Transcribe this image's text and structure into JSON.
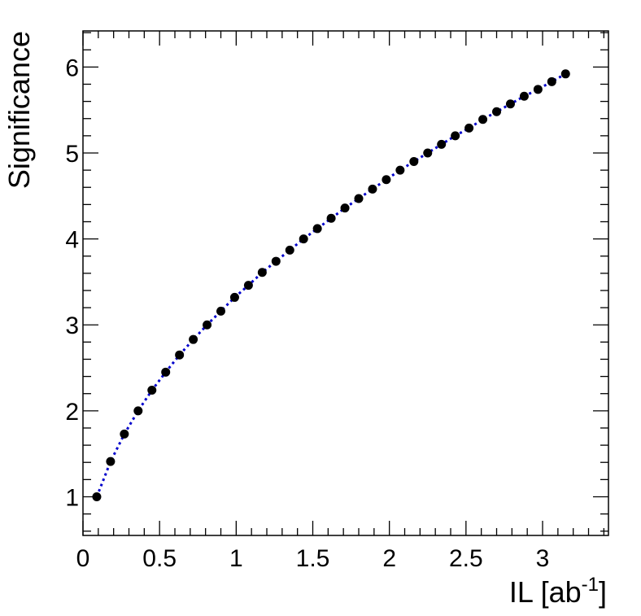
{
  "chart_data": {
    "type": "scatter",
    "xlabel": "IL [ab",
    "xlabel_superscript": "-1",
    "xlabel_close": "]",
    "ylabel": "Significance",
    "xlim": [
      0,
      3.43
    ],
    "ylim": [
      0.55,
      6.42
    ],
    "xticks": [
      0,
      0.5,
      1,
      1.5,
      2,
      2.5,
      3
    ],
    "xtick_labels": [
      "0",
      "0.5",
      "1",
      "1.5",
      "2",
      "2.5",
      "3"
    ],
    "yticks": [
      1,
      2,
      3,
      4,
      5,
      6
    ],
    "ytick_labels": [
      "1",
      "2",
      "3",
      "4",
      "5",
      "6"
    ],
    "grid": false,
    "marker_color": "#000000",
    "line_color": "#0000cc",
    "line_style": "dotted",
    "points": {
      "x": [
        0.09,
        0.18,
        0.27,
        0.36,
        0.45,
        0.54,
        0.63,
        0.72,
        0.81,
        0.9,
        0.99,
        1.08,
        1.17,
        1.26,
        1.35,
        1.44,
        1.53,
        1.62,
        1.71,
        1.8,
        1.89,
        1.98,
        2.07,
        2.16,
        2.25,
        2.34,
        2.43,
        2.52,
        2.61,
        2.7,
        2.79,
        2.88,
        2.97,
        3.06,
        3.15
      ],
      "y": [
        1.0,
        1.41,
        1.73,
        2.0,
        2.24,
        2.45,
        2.65,
        2.83,
        3.0,
        3.16,
        3.32,
        3.46,
        3.61,
        3.74,
        3.87,
        4.0,
        4.12,
        4.24,
        4.36,
        4.47,
        4.58,
        4.69,
        4.8,
        4.9,
        5.0,
        5.1,
        5.2,
        5.29,
        5.39,
        5.48,
        5.57,
        5.66,
        5.74,
        5.83,
        5.92
      ]
    }
  }
}
